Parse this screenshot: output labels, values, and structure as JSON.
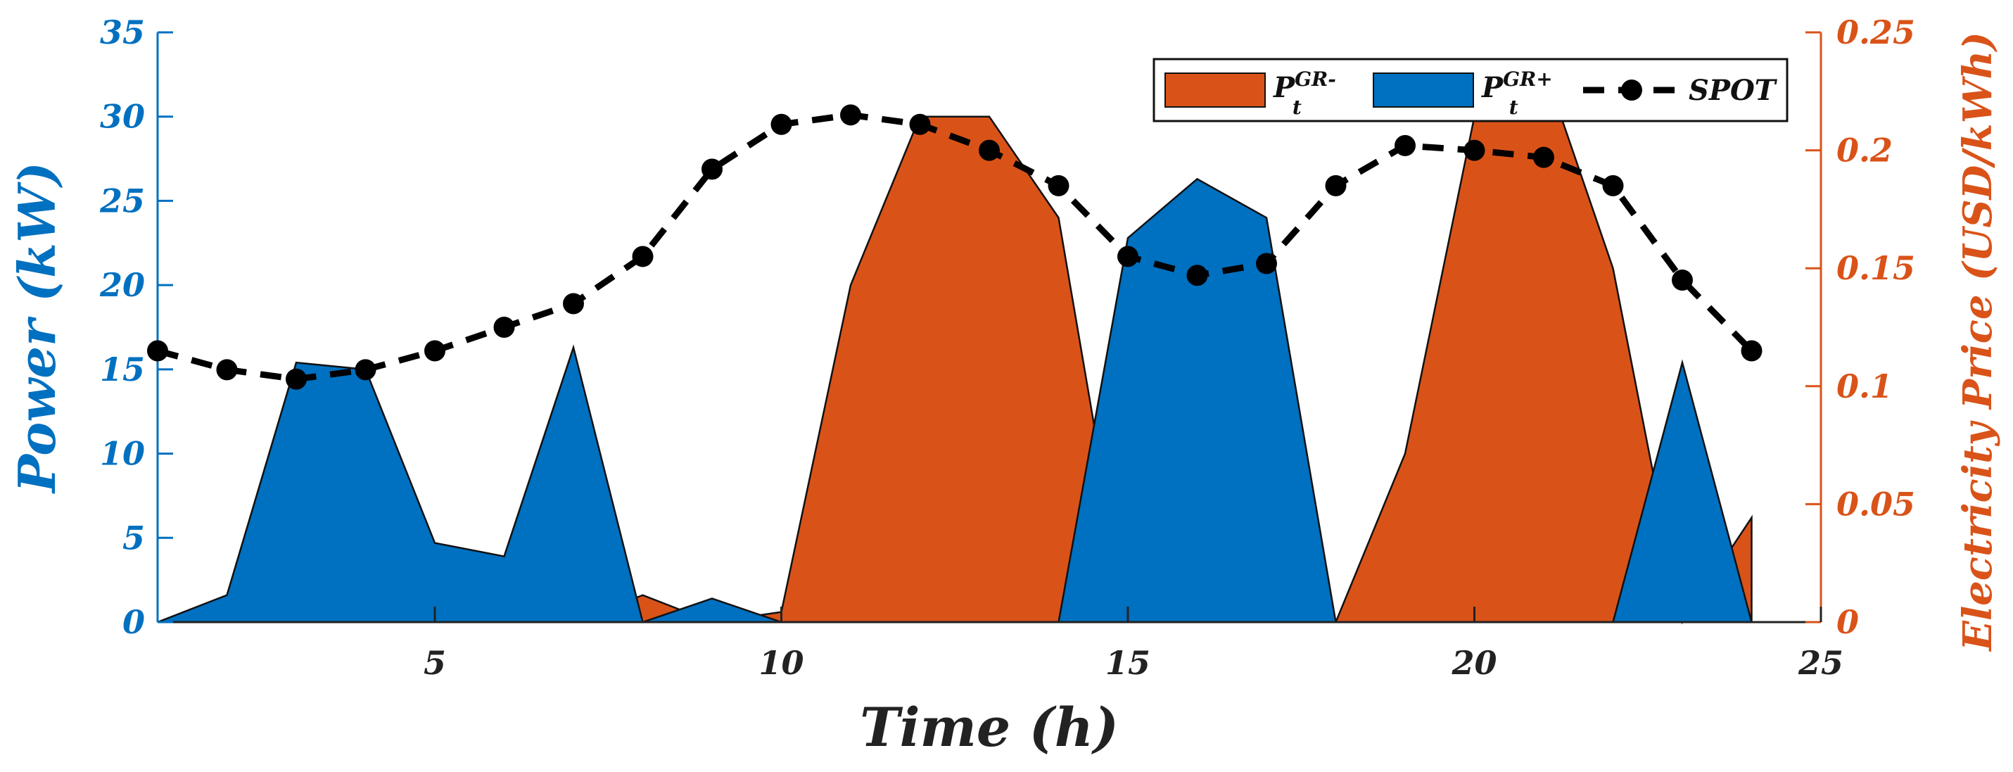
{
  "chart_data": {
    "type": "area",
    "x": [
      1,
      2,
      3,
      4,
      5,
      6,
      7,
      8,
      9,
      10,
      11,
      12,
      13,
      14,
      15,
      16,
      17,
      18,
      19,
      20,
      21,
      22,
      23,
      24
    ],
    "xlabel": "Time (h)",
    "xlim": [
      1,
      25
    ],
    "xticks": [
      5,
      10,
      15,
      20,
      25
    ],
    "ylabel_left": "Power (kW)",
    "ylim_left": [
      0,
      35
    ],
    "yticks_left": [
      0,
      5,
      10,
      15,
      20,
      25,
      30,
      35
    ],
    "ylabel_right": "Electricity Price (USD/kWh)",
    "ylim_right": [
      0,
      0.25
    ],
    "yticks_right": [
      0,
      0.05,
      0.1,
      0.15,
      0.2,
      0.25
    ],
    "series": [
      {
        "name": "P_t^{GR-}",
        "label_main": "P",
        "label_sup": "GR-",
        "label_sub": "t",
        "axis": "left",
        "kind": "area",
        "color": "#d95319",
        "values": [
          0,
          0,
          0,
          0,
          0,
          0,
          0,
          1.6,
          0,
          0.6,
          20,
          30,
          30,
          24,
          0,
          0,
          0,
          0,
          10,
          30,
          33,
          21,
          0,
          6.2
        ]
      },
      {
        "name": "P_t^{GR+}",
        "label_main": "P",
        "label_sup": "GR+",
        "label_sub": "t",
        "axis": "left",
        "kind": "area",
        "color": "#0070c0",
        "values": [
          0,
          1.6,
          15.4,
          15,
          4.7,
          3.9,
          16.3,
          0,
          1.4,
          0,
          0,
          0,
          0,
          0,
          22.8,
          26.3,
          24,
          0,
          0,
          0,
          0,
          0,
          15.4,
          0
        ]
      },
      {
        "name": "SPOT",
        "label_main": "SPOT",
        "axis": "right",
        "kind": "line",
        "style": "dashed",
        "marker": "circle",
        "color": "#000000",
        "values": [
          0.115,
          0.107,
          0.103,
          0.107,
          0.115,
          0.125,
          0.135,
          0.155,
          0.192,
          0.211,
          0.215,
          0.211,
          0.2,
          0.185,
          0.155,
          0.147,
          0.152,
          0.185,
          0.202,
          0.2,
          0.197,
          0.185,
          0.145,
          0.115
        ]
      }
    ]
  }
}
